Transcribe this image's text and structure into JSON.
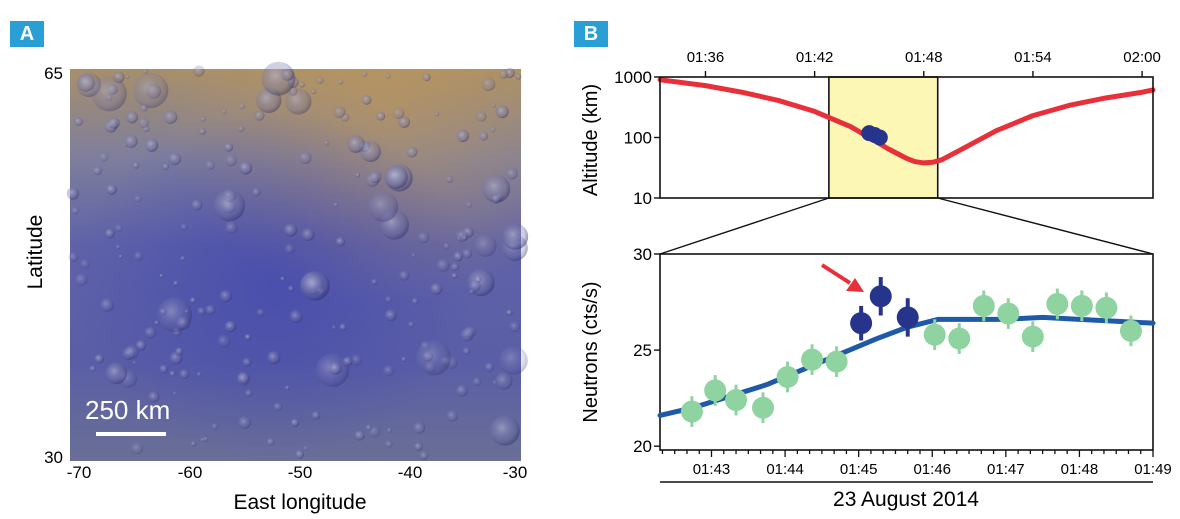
{
  "panels": {
    "a": {
      "letter": "A"
    },
    "b": {
      "letter": "B"
    }
  },
  "map": {
    "ylabel": "Latitude",
    "xlabel": "East longitude",
    "y_ticks": [
      "65",
      "30"
    ],
    "x_ticks": [
      "-70",
      "-60",
      "-50",
      "-40",
      "-30"
    ],
    "scale_bar_label": "250 km"
  },
  "chart_data": [
    {
      "type": "line",
      "ylabel": "Altitude (km)",
      "yscale": "log",
      "ylim": [
        10,
        1000
      ],
      "y_ticks": [
        "1000",
        "100",
        "10"
      ],
      "x_ticks_top": [
        "01:36",
        "01:42",
        "01:48",
        "01:54",
        "02:00"
      ],
      "xlim_minutes": [
        93.5,
        120.6
      ],
      "highlight_window": [
        "01:42:47",
        "01:48:46"
      ],
      "series": [
        {
          "x": [
            "01:33:30",
            "01:36:00",
            "01:38:00",
            "01:40:00",
            "01:42:00",
            "01:44:00",
            "01:45:00",
            "01:46:00",
            "01:47:00",
            "01:47:30",
            "01:48:00",
            "01:48:30",
            "01:49:00",
            "01:50:00",
            "01:52:00",
            "01:54:00",
            "01:56:00",
            "01:58:00",
            "02:00:00",
            "02:00:36"
          ],
          "y": [
            900,
            720,
            560,
            410,
            270,
            150,
            100,
            66,
            46,
            40,
            38,
            39,
            43,
            62,
            130,
            230,
            340,
            450,
            560,
            610
          ],
          "color": "#e8303a"
        },
        {
          "x": [
            "01:45:00",
            "01:45:18",
            "01:45:35"
          ],
          "y": [
            118,
            110,
            100
          ],
          "color": "#26348b"
        }
      ]
    },
    {
      "type": "scatter",
      "ylabel": "Neutrons (cts/s)",
      "ylim": [
        19.8,
        30
      ],
      "y_ticks": [
        "30",
        "25",
        "20"
      ],
      "x_ticks": [
        "01:43",
        "01:44",
        "01:45",
        "01:46",
        "01:47",
        "01:48",
        "01:49"
      ],
      "xlabel": "23 August 2014",
      "xlim_minutes": [
        102.3,
        109.0
      ],
      "points": [
        {
          "t": "01:42:44",
          "y": 21.8,
          "err": 0.8,
          "highlight": false
        },
        {
          "t": "01:43:03",
          "y": 22.9,
          "err": 0.8,
          "highlight": false
        },
        {
          "t": "01:43:20",
          "y": 22.4,
          "err": 0.8,
          "highlight": false
        },
        {
          "t": "01:43:42",
          "y": 22.0,
          "err": 0.8,
          "highlight": false
        },
        {
          "t": "01:44:02",
          "y": 23.6,
          "err": 0.8,
          "highlight": false
        },
        {
          "t": "01:44:22",
          "y": 24.5,
          "err": 0.8,
          "highlight": false
        },
        {
          "t": "01:44:42",
          "y": 24.4,
          "err": 0.8,
          "highlight": false
        },
        {
          "t": "01:45:02",
          "y": 26.4,
          "err": 0.9,
          "highlight": true
        },
        {
          "t": "01:45:18",
          "y": 27.8,
          "err": 1.0,
          "highlight": true
        },
        {
          "t": "01:45:40",
          "y": 26.7,
          "err": 1.0,
          "highlight": true
        },
        {
          "t": "01:46:02",
          "y": 25.8,
          "err": 0.8,
          "highlight": false
        },
        {
          "t": "01:46:22",
          "y": 25.6,
          "err": 0.8,
          "highlight": false
        },
        {
          "t": "01:46:42",
          "y": 27.3,
          "err": 0.8,
          "highlight": false
        },
        {
          "t": "01:47:02",
          "y": 26.9,
          "err": 0.8,
          "highlight": false
        },
        {
          "t": "01:47:22",
          "y": 25.7,
          "err": 0.8,
          "highlight": false
        },
        {
          "t": "01:47:42",
          "y": 27.4,
          "err": 0.8,
          "highlight": false
        },
        {
          "t": "01:48:02",
          "y": 27.3,
          "err": 0.8,
          "highlight": false
        },
        {
          "t": "01:48:22",
          "y": 27.2,
          "err": 0.8,
          "highlight": false
        },
        {
          "t": "01:48:42",
          "y": 26.0,
          "err": 0.8,
          "highlight": false
        }
      ],
      "fit": {
        "x": [
          "01:42:18",
          "01:42:45",
          "01:43:15",
          "01:43:45",
          "01:44:15",
          "01:44:45",
          "01:45:15",
          "01:45:40",
          "01:46:05",
          "01:46:30",
          "01:47:00",
          "01:47:30",
          "01:48:00",
          "01:48:30",
          "01:49:00"
        ],
        "y": [
          21.6,
          22.0,
          22.6,
          23.2,
          24.0,
          24.8,
          25.6,
          26.2,
          26.6,
          26.6,
          26.6,
          26.7,
          26.6,
          26.5,
          26.4
        ],
        "color": "#1f5aa8"
      },
      "colors": {
        "normal": "#8fd3a0",
        "highlight": "#26348b",
        "arrow": "#e8303a"
      }
    }
  ]
}
